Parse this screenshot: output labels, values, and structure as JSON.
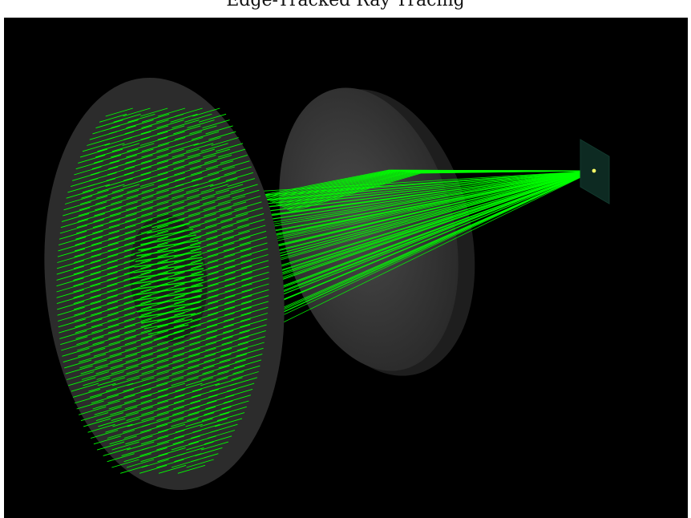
{
  "window": {
    "title": "Edge-Tracked Ray Tracing"
  },
  "viewport": {
    "background_color": "#000000",
    "ray_color": "#00ff00",
    "lens_color": "#3a3a3a",
    "lens_back_color": "#2a2a2a",
    "detector_color": "#0d2a22",
    "focus_marker_color": "#ffff66"
  }
}
